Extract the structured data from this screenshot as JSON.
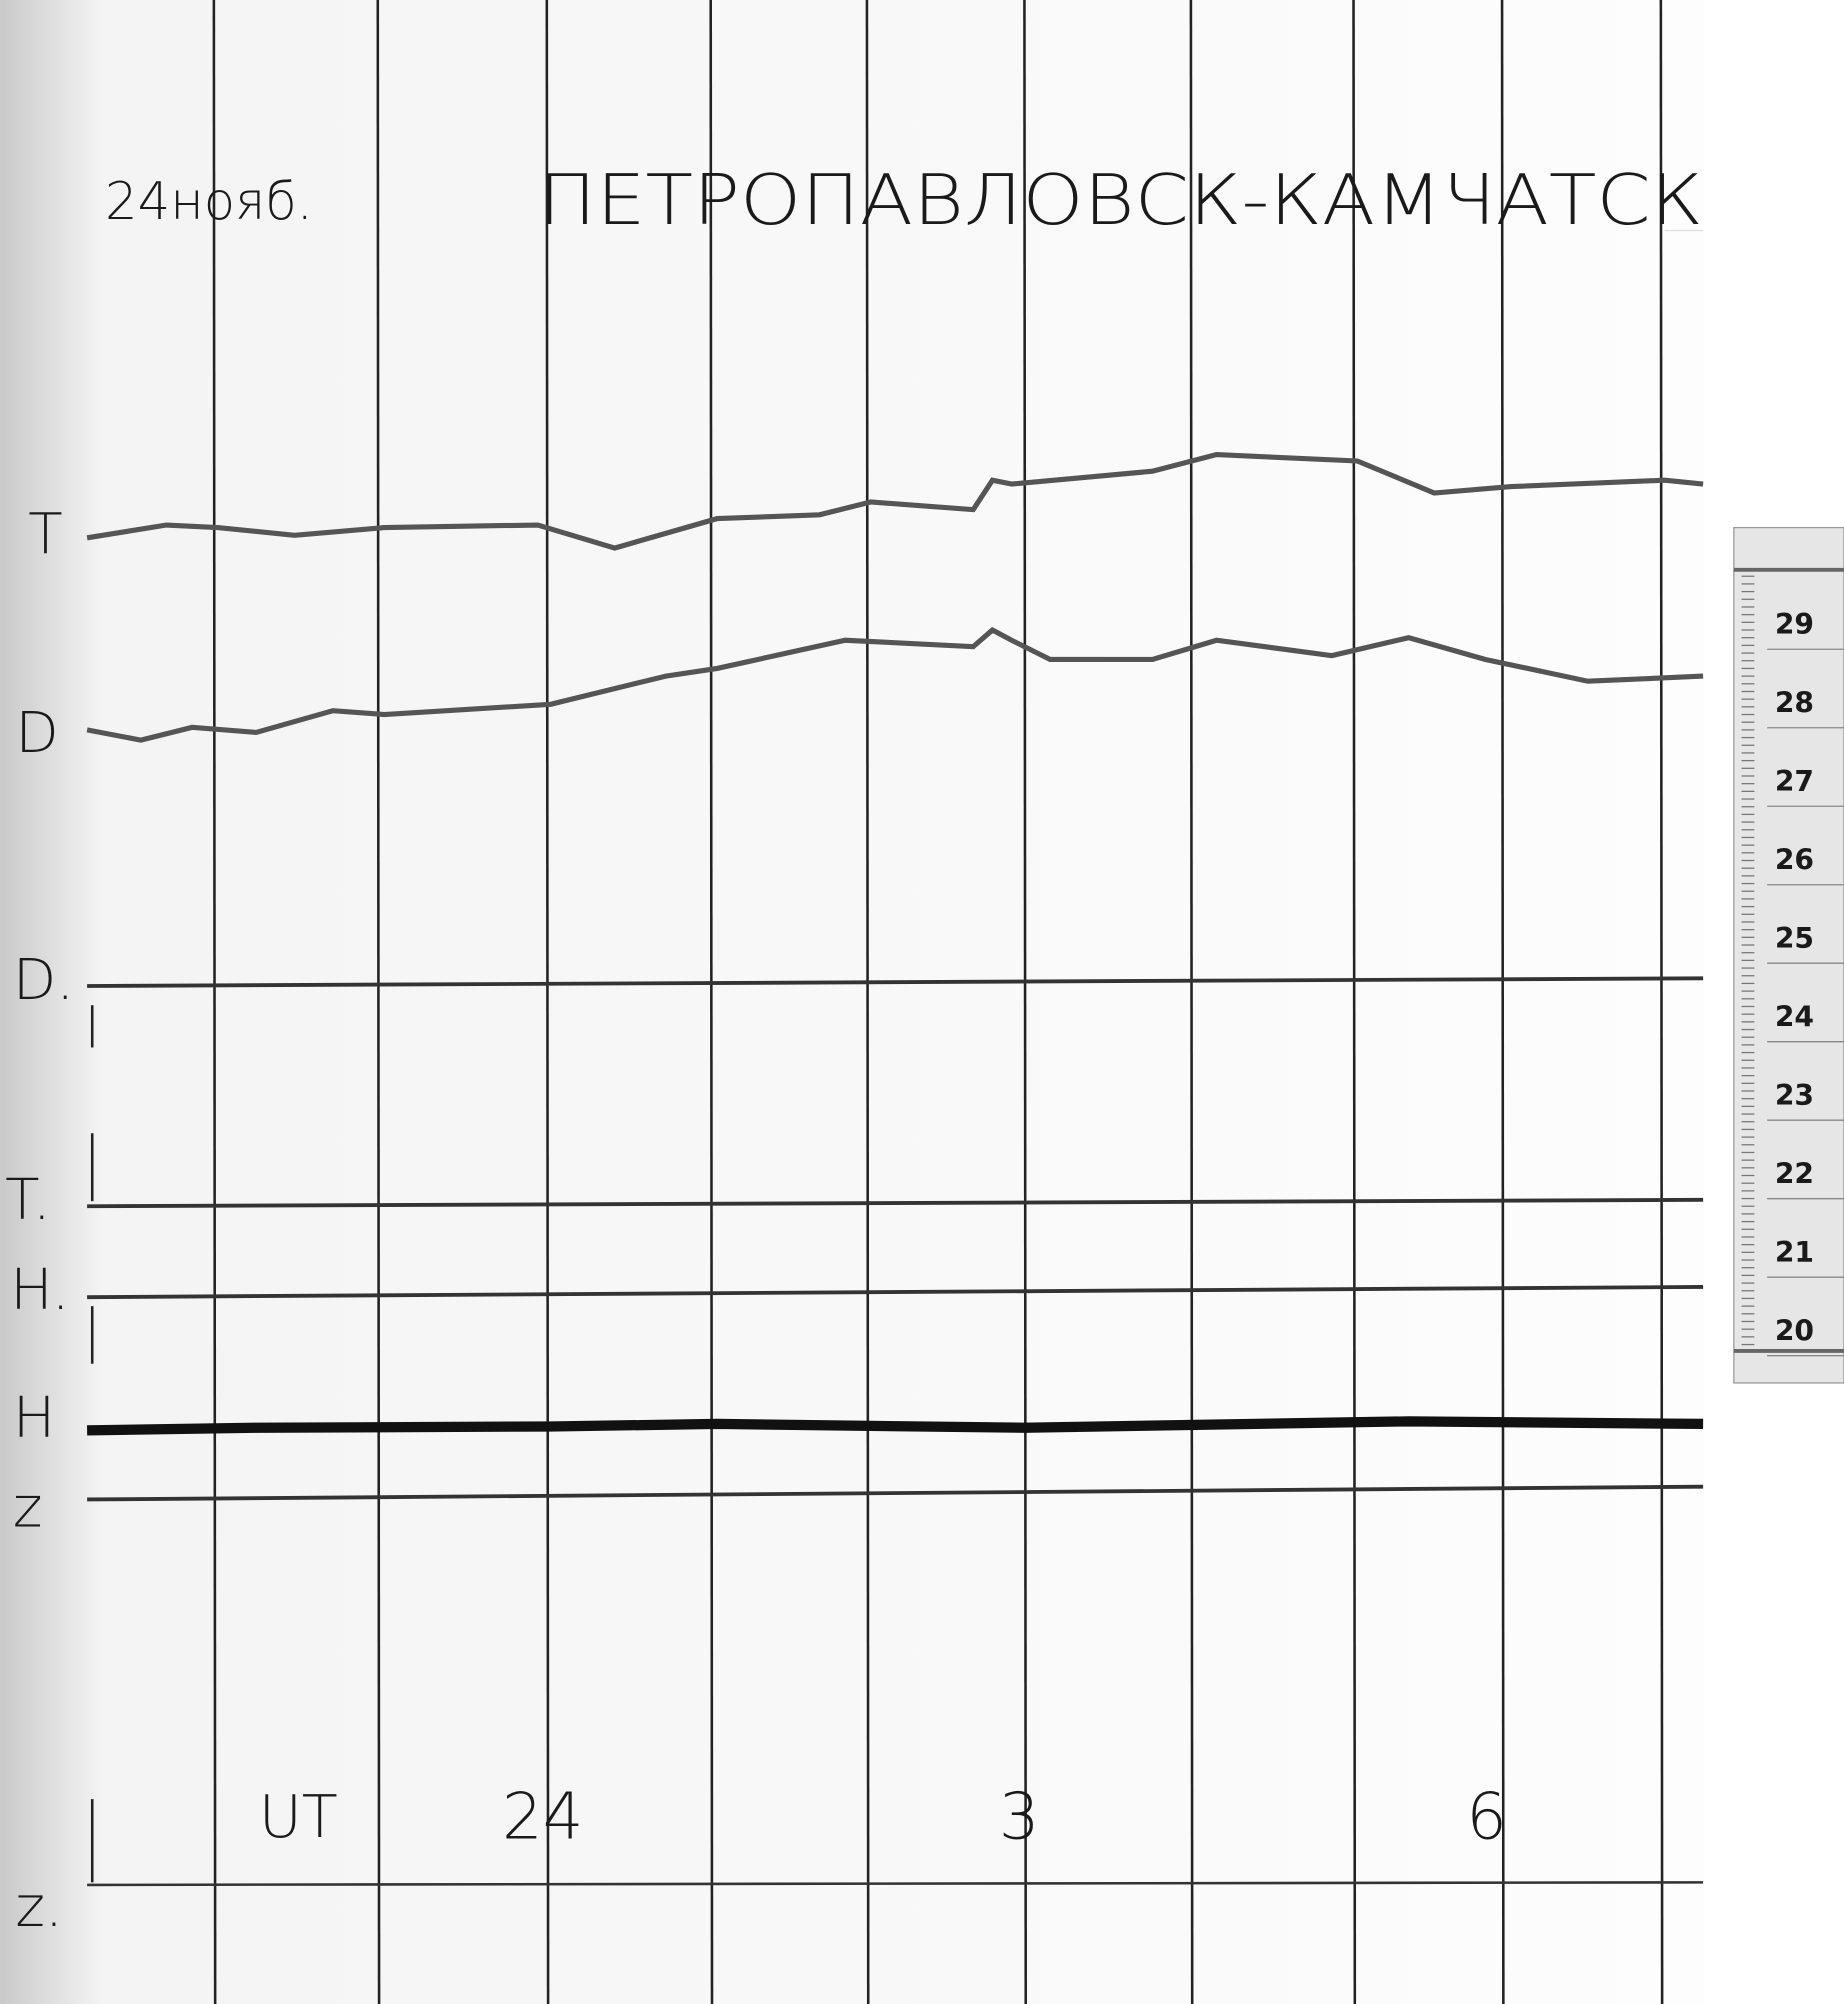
{
  "header": {
    "date": "24нояб.",
    "station": "ПЕТРОПАВЛОВСК-КАМЧАТСК"
  },
  "trace_labels": [
    "T",
    "D",
    "D.",
    "T.",
    "H.",
    "H",
    "z",
    "z."
  ],
  "time_axis": {
    "label": "UT",
    "ticks": [
      "24",
      "3",
      "6"
    ]
  },
  "scale": {
    "ticks": [
      "29",
      "28",
      "27",
      "26",
      "25",
      "24",
      "23",
      "22",
      "21",
      "20"
    ]
  }
}
